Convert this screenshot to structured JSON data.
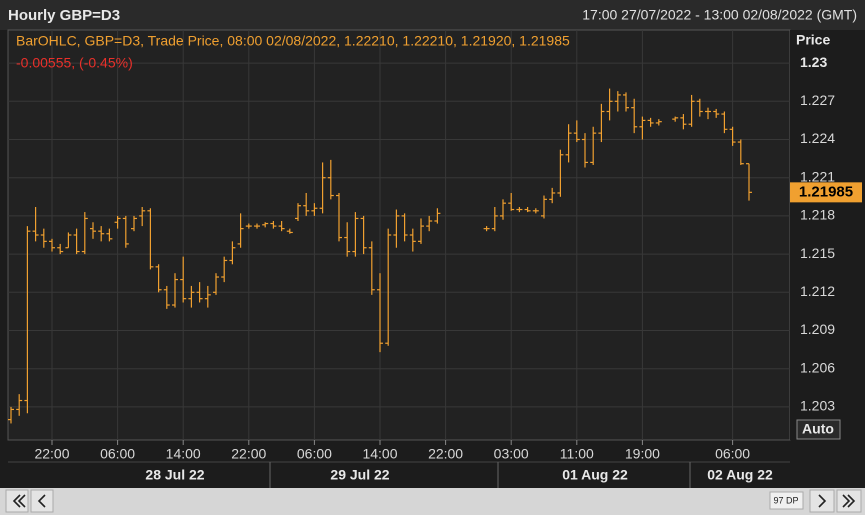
{
  "header": {
    "title": "Hourly GBP=D3",
    "range": "17:00 27/07/2022 - 13:00 02/08/2022 (GMT)"
  },
  "chart_data": {
    "type": "ohlc",
    "legend": "BarOHLC, GBP=D3, Trade Price, 08:00 02/08/2022, 1.22210, 1.22210, 1.21920, 1.21985",
    "change": "-0.00555, (-0.45%)",
    "y_axis_label": "Price",
    "categories": [
      null,
      null,
      null,
      null,
      null,
      "22:00",
      null,
      null,
      null,
      null,
      null,
      null,
      null,
      "06:00",
      null,
      null,
      null,
      null,
      null,
      null,
      null,
      "14:00",
      null,
      null,
      null,
      null,
      null,
      null,
      null,
      "22:00",
      null,
      null,
      null,
      null,
      null,
      null,
      null,
      "06:00",
      null,
      null,
      null,
      null,
      null,
      null,
      null,
      "14:00",
      null,
      null,
      null,
      null,
      null,
      null,
      null,
      "22:00",
      null,
      null,
      null,
      null,
      null,
      null,
      null,
      "03:00",
      null,
      null,
      null,
      null,
      null,
      null,
      null,
      "11:00",
      null,
      null,
      null,
      null,
      null,
      null,
      null,
      "19:00",
      null,
      null,
      null,
      null,
      null,
      null,
      null,
      null,
      null,
      null,
      "06:00",
      null,
      null
    ],
    "date_labels": [
      "28 Jul 22",
      "29 Jul 22",
      "01 Aug 22",
      "02 Aug 22"
    ],
    "open": [
      1.202,
      1.2028,
      1.2035,
      1.2168,
      1.2165,
      1.216,
      1.2155,
      1.2155,
      1.2165,
      1.2152,
      1.217,
      1.2168,
      1.2166,
      1.2175,
      1.2178,
      1.217,
      1.218,
      1.2184,
      1.214,
      1.2122,
      1.211,
      1.213,
      1.2115,
      1.212,
      1.2115,
      1.212,
      1.2132,
      1.2145,
      1.2158,
      1.2172,
      1.2172,
      1.2173,
      1.2174,
      1.2172,
      1.2168,
      1.2178,
      1.2188,
      1.2184,
      1.2186,
      1.221,
      1.2196,
      1.2163,
      1.2152,
      1.2178,
      1.2155,
      1.2122,
      1.208,
      1.2165,
      1.218,
      1.2165,
      1.216,
      1.2172,
      1.2176,
      null,
      null,
      null,
      null,
      null,
      1.217,
      1.217,
      1.218,
      1.219,
      1.2185,
      1.2185,
      1.2184,
      1.218,
      1.2193,
      1.2198,
      1.2228,
      1.2245,
      1.224,
      1.2222,
      1.2245,
      1.2262,
      1.227,
      1.2275,
      1.2265,
      1.225,
      1.2255,
      1.2253,
      null,
      1.2256,
      1.2257,
      1.2252,
      1.227,
      1.2262,
      1.2262,
      1.226,
      1.2248,
      1.2238,
      1.2221
    ],
    "high": [
      1.203,
      1.204,
      1.2172,
      1.2187,
      1.217,
      1.2162,
      1.2158,
      1.2167,
      1.217,
      1.2183,
      1.2175,
      1.2172,
      1.217,
      1.218,
      1.218,
      1.218,
      1.2187,
      1.2186,
      1.2142,
      1.2125,
      1.2135,
      1.2148,
      1.2125,
      1.2128,
      1.2125,
      1.2135,
      1.2148,
      1.216,
      1.2182,
      1.2174,
      1.2174,
      1.2175,
      1.2176,
      1.2176,
      1.217,
      1.219,
      1.2198,
      1.219,
      1.2222,
      1.2224,
      1.2198,
      1.2175,
      1.2183,
      1.218,
      1.216,
      1.2135,
      1.217,
      1.2185,
      1.2182,
      1.217,
      1.2178,
      1.218,
      1.2186,
      null,
      null,
      null,
      null,
      null,
      1.2172,
      1.2187,
      1.2193,
      1.2198,
      1.2187,
      1.2187,
      1.2186,
      1.2196,
      1.2202,
      1.2232,
      1.2252,
      1.2255,
      1.2245,
      1.225,
      1.2268,
      1.228,
      1.2278,
      1.2277,
      1.2272,
      1.2258,
      1.2257,
      1.2256,
      null,
      1.2258,
      1.226,
      1.2275,
      1.2272,
      1.2265,
      1.2264,
      1.2262,
      1.225,
      1.224,
      1.2221
    ],
    "low": [
      1.2017,
      1.2023,
      1.2025,
      1.216,
      1.2155,
      1.2152,
      1.215,
      1.2155,
      1.215,
      1.215,
      1.2162,
      1.216,
      1.216,
      1.217,
      1.2155,
      1.2168,
      1.2172,
      1.2138,
      1.212,
      1.2107,
      1.2108,
      1.2112,
      1.2108,
      1.2112,
      1.2108,
      1.2118,
      1.2128,
      1.2142,
      1.2155,
      1.217,
      1.217,
      1.2171,
      1.217,
      1.2168,
      1.2166,
      1.2176,
      1.218,
      1.218,
      1.2182,
      1.2193,
      1.216,
      1.2148,
      1.2148,
      1.215,
      1.2118,
      1.2073,
      1.2078,
      1.2155,
      1.216,
      1.2152,
      1.2158,
      1.2168,
      1.2174,
      null,
      null,
      null,
      null,
      null,
      1.2168,
      1.2168,
      1.2177,
      1.2184,
      1.2183,
      1.2183,
      1.2182,
      1.2178,
      1.219,
      1.2195,
      1.2222,
      1.2238,
      1.2218,
      1.222,
      1.2238,
      1.2255,
      1.2262,
      1.2262,
      1.2245,
      1.224,
      1.225,
      1.2251,
      null,
      1.2254,
      1.2248,
      1.225,
      1.2258,
      1.2256,
      1.2257,
      1.2245,
      1.2235,
      1.222,
      1.2192
    ],
    "close": [
      1.2028,
      1.2035,
      1.2168,
      1.2165,
      1.216,
      1.2155,
      1.2152,
      1.2165,
      1.2152,
      1.2178,
      1.2168,
      1.2166,
      1.2162,
      1.2178,
      1.2158,
      1.2178,
      1.2184,
      1.214,
      1.2122,
      1.211,
      1.213,
      1.2115,
      1.212,
      1.2115,
      1.2118,
      1.2132,
      1.2145,
      1.2155,
      1.217,
      1.2172,
      1.2172,
      1.2174,
      1.2172,
      1.217,
      1.2167,
      1.2188,
      1.2184,
      1.2186,
      1.221,
      1.2196,
      1.2163,
      1.2152,
      1.2178,
      1.2155,
      1.2122,
      1.208,
      1.2165,
      1.218,
      1.2165,
      1.216,
      1.2172,
      1.2176,
      1.2182,
      null,
      null,
      null,
      null,
      null,
      1.217,
      1.218,
      1.219,
      1.2185,
      1.2185,
      1.2184,
      1.2184,
      1.2193,
      1.2198,
      1.2228,
      1.2245,
      1.224,
      1.2222,
      1.2245,
      1.2262,
      1.227,
      1.2275,
      1.2265,
      1.225,
      1.2255,
      1.2253,
      1.2254,
      null,
      1.2257,
      1.2252,
      1.227,
      1.2262,
      1.2262,
      1.226,
      1.2248,
      1.2238,
      1.2221,
      1.21985
    ],
    "color": "#f0a030",
    "ylim": [
      1.2004,
      1.2326
    ],
    "yticks": [
      1.203,
      1.206,
      1.209,
      1.212,
      1.215,
      1.218,
      1.221,
      1.224,
      1.227,
      1.23
    ],
    "grid": true
  },
  "controls": {
    "auto": "Auto",
    "zoom": "97 DP"
  }
}
